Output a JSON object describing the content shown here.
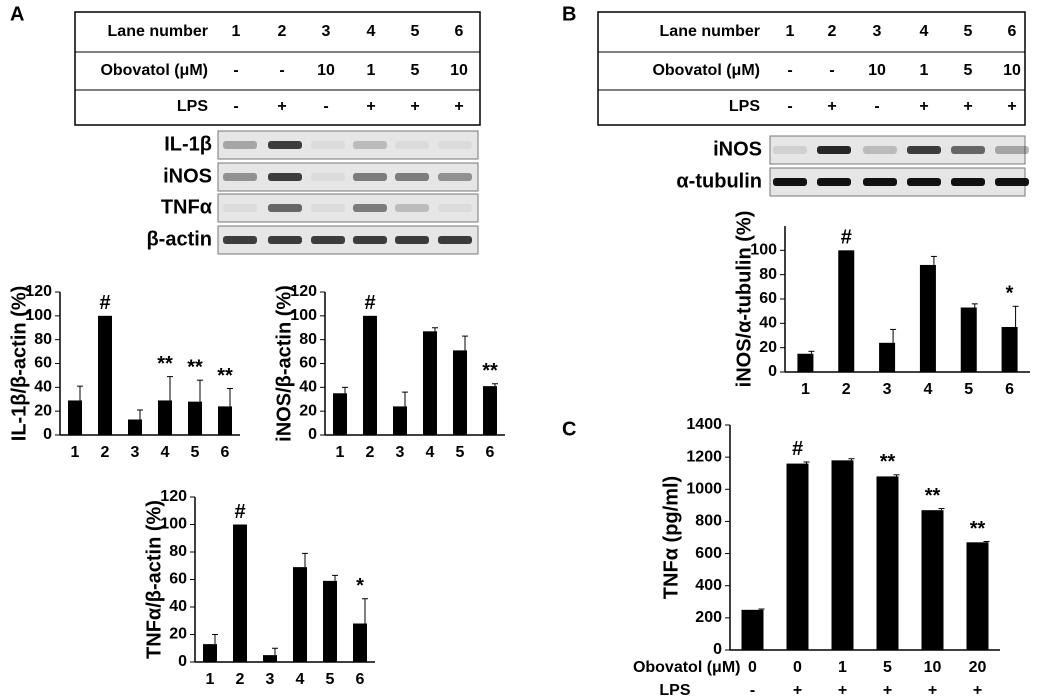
{
  "panel_labels": [
    "A",
    "B",
    "C"
  ],
  "tables": [
    {
      "rows": [
        [
          "Lane number",
          "1",
          "2",
          "3",
          "4",
          "5",
          "6"
        ],
        [
          "Obovatol (μM)",
          "-",
          "-",
          "10",
          "1",
          "5",
          "10"
        ],
        [
          "LPS",
          "-",
          "+",
          "-",
          "+",
          "+",
          "+"
        ]
      ]
    },
    {
      "rows": [
        [
          "Lane number",
          "1",
          "2",
          "3",
          "4",
          "5",
          "6"
        ],
        [
          "Obovatol (μM)",
          "-",
          "-",
          "10",
          "1",
          "5",
          "10"
        ],
        [
          "LPS",
          "-",
          "+",
          "-",
          "+",
          "+",
          "+"
        ]
      ]
    }
  ],
  "blots": [
    [
      "IL-1β",
      "iNOS",
      "TNFα",
      "β-actin"
    ],
    [
      "iNOS",
      "α-tubulin"
    ]
  ],
  "chart_data": [
    {
      "type": "bar",
      "ylabel": "IL-1β/β-actin (%)",
      "categories": [
        "1",
        "2",
        "3",
        "4",
        "5",
        "6"
      ],
      "values": [
        29,
        100,
        13,
        29,
        28,
        24
      ],
      "errors": [
        12,
        0,
        8,
        20,
        18,
        15
      ],
      "markers": [
        null,
        "#",
        null,
        "**",
        "**",
        "**"
      ],
      "ylim": [
        0,
        120
      ],
      "yticks": [
        0,
        20,
        40,
        60,
        80,
        100,
        120
      ],
      "color": "#000000"
    },
    {
      "type": "bar",
      "ylabel": "iNOS/β-actin (%)",
      "categories": [
        "1",
        "2",
        "3",
        "4",
        "5",
        "6"
      ],
      "values": [
        35,
        100,
        24,
        87,
        71,
        41
      ],
      "errors": [
        5,
        0,
        12,
        3,
        12,
        2
      ],
      "markers": [
        null,
        "#",
        null,
        null,
        null,
        "**"
      ],
      "ylim": [
        0,
        120
      ],
      "yticks": [
        0,
        20,
        40,
        60,
        80,
        100,
        120
      ],
      "color": "#000000"
    },
    {
      "type": "bar",
      "ylabel": "TNFα/β-actin (%)",
      "categories": [
        "1",
        "2",
        "3",
        "4",
        "5",
        "6"
      ],
      "values": [
        13,
        100,
        5,
        69,
        59,
        28
      ],
      "errors": [
        7,
        0,
        5,
        10,
        4,
        18
      ],
      "markers": [
        null,
        "#",
        null,
        null,
        null,
        "*"
      ],
      "ylim": [
        0,
        120
      ],
      "yticks": [
        0,
        20,
        40,
        60,
        80,
        100,
        120
      ],
      "color": "#000000"
    },
    {
      "type": "bar",
      "ylabel": "iNOS/α-tubulin (%)",
      "categories": [
        "1",
        "2",
        "3",
        "4",
        "5",
        "6"
      ],
      "values": [
        15,
        100,
        24,
        88,
        53,
        37
      ],
      "errors": [
        2,
        0,
        11,
        7,
        3,
        17
      ],
      "markers": [
        null,
        "#",
        null,
        null,
        null,
        "*"
      ],
      "ylim": [
        0,
        120
      ],
      "yticks": [
        0,
        20,
        40,
        60,
        80,
        100
      ],
      "color": "#000000"
    },
    {
      "type": "bar",
      "ylabel": "TNFα (pg/ml)",
      "xlabel": "Obovatol (μM)",
      "categories": [
        "0",
        "0",
        "1",
        "5",
        "10",
        "20"
      ],
      "xlabel2": "LPS",
      "categories2": [
        "-",
        "+",
        "+",
        "+",
        "+",
        "+"
      ],
      "values": [
        250,
        1160,
        1180,
        1080,
        870,
        670
      ],
      "errors": [
        5,
        10,
        10,
        10,
        10,
        5
      ],
      "markers": [
        null,
        "#",
        null,
        "**",
        "**",
        "**"
      ],
      "ylim": [
        0,
        1400
      ],
      "yticks": [
        0,
        200,
        400,
        600,
        800,
        1000,
        1200,
        1400
      ],
      "color": "#000000"
    }
  ]
}
